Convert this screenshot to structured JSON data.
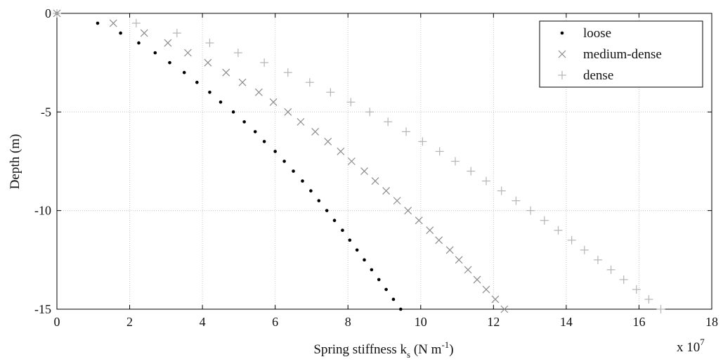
{
  "chart_data": {
    "type": "scatter",
    "title": "",
    "xlabel_main": "Spring stiffness k",
    "xlabel_sub": "s",
    "xlabel_tail": " (N m",
    "xlabel_sup": "-1",
    "xlabel_close": ")",
    "ylabel": "Depth (m)",
    "x_multiplier_base": "x 10",
    "x_multiplier_exp": "7",
    "xlim": [
      0,
      18
    ],
    "ylim": [
      -15,
      0
    ],
    "xticks": [
      "0",
      "2",
      "4",
      "6",
      "8",
      "10",
      "12",
      "14",
      "16",
      "18"
    ],
    "yticks": [
      "0",
      "-5",
      "-10",
      "-15"
    ],
    "grid": true,
    "legend_position": "top-right",
    "series": [
      {
        "name": "loose",
        "marker": "dot",
        "color": "#000000",
        "points": [
          [
            0,
            0
          ],
          [
            1.12,
            -0.5
          ],
          [
            1.75,
            -1.0
          ],
          [
            2.25,
            -1.5
          ],
          [
            2.7,
            -2.0
          ],
          [
            3.1,
            -2.5
          ],
          [
            3.5,
            -3.0
          ],
          [
            3.85,
            -3.5
          ],
          [
            4.2,
            -4.0
          ],
          [
            4.5,
            -4.5
          ],
          [
            4.85,
            -5.0
          ],
          [
            5.15,
            -5.5
          ],
          [
            5.45,
            -6.0
          ],
          [
            5.7,
            -6.5
          ],
          [
            6.0,
            -7.0
          ],
          [
            6.25,
            -7.5
          ],
          [
            6.5,
            -8.0
          ],
          [
            6.75,
            -8.5
          ],
          [
            6.98,
            -9.0
          ],
          [
            7.2,
            -9.5
          ],
          [
            7.42,
            -10.0
          ],
          [
            7.63,
            -10.5
          ],
          [
            7.85,
            -11.0
          ],
          [
            8.05,
            -11.5
          ],
          [
            8.25,
            -12.0
          ],
          [
            8.45,
            -12.5
          ],
          [
            8.65,
            -13.0
          ],
          [
            8.85,
            -13.5
          ],
          [
            9.05,
            -14.0
          ],
          [
            9.25,
            -14.5
          ],
          [
            9.45,
            -15.0
          ]
        ]
      },
      {
        "name": "medium-dense",
        "marker": "x",
        "color": "#8c8c8c",
        "points": [
          [
            0,
            0
          ],
          [
            1.55,
            -0.5
          ],
          [
            2.4,
            -1.0
          ],
          [
            3.05,
            -1.5
          ],
          [
            3.6,
            -2.0
          ],
          [
            4.15,
            -2.5
          ],
          [
            4.65,
            -3.0
          ],
          [
            5.1,
            -3.5
          ],
          [
            5.55,
            -4.0
          ],
          [
            5.95,
            -4.5
          ],
          [
            6.35,
            -5.0
          ],
          [
            6.7,
            -5.5
          ],
          [
            7.1,
            -6.0
          ],
          [
            7.45,
            -6.5
          ],
          [
            7.8,
            -7.0
          ],
          [
            8.1,
            -7.5
          ],
          [
            8.45,
            -8.0
          ],
          [
            8.75,
            -8.5
          ],
          [
            9.05,
            -9.0
          ],
          [
            9.35,
            -9.5
          ],
          [
            9.65,
            -10.0
          ],
          [
            9.95,
            -10.5
          ],
          [
            10.25,
            -11.0
          ],
          [
            10.5,
            -11.5
          ],
          [
            10.8,
            -12.0
          ],
          [
            11.05,
            -12.5
          ],
          [
            11.3,
            -13.0
          ],
          [
            11.55,
            -13.5
          ],
          [
            11.8,
            -14.0
          ],
          [
            12.05,
            -14.5
          ],
          [
            12.3,
            -15.0
          ]
        ]
      },
      {
        "name": "dense",
        "marker": "plus",
        "color": "#b4b4b4",
        "points": [
          [
            0,
            0
          ],
          [
            2.18,
            -0.5
          ],
          [
            3.3,
            -1.0
          ],
          [
            4.2,
            -1.5
          ],
          [
            4.98,
            -2.0
          ],
          [
            5.7,
            -2.5
          ],
          [
            6.35,
            -3.0
          ],
          [
            6.95,
            -3.5
          ],
          [
            7.52,
            -4.0
          ],
          [
            8.08,
            -4.5
          ],
          [
            8.6,
            -5.0
          ],
          [
            9.1,
            -5.5
          ],
          [
            9.6,
            -6.0
          ],
          [
            10.05,
            -6.5
          ],
          [
            10.52,
            -7.0
          ],
          [
            10.95,
            -7.5
          ],
          [
            11.38,
            -8.0
          ],
          [
            11.8,
            -8.5
          ],
          [
            12.22,
            -9.0
          ],
          [
            12.62,
            -9.5
          ],
          [
            13.02,
            -10.0
          ],
          [
            13.4,
            -10.5
          ],
          [
            13.78,
            -11.0
          ],
          [
            14.15,
            -11.5
          ],
          [
            14.5,
            -12.0
          ],
          [
            14.87,
            -12.5
          ],
          [
            15.23,
            -13.0
          ],
          [
            15.58,
            -13.5
          ],
          [
            15.93,
            -14.0
          ],
          [
            16.27,
            -14.5
          ],
          [
            16.6,
            -15.0
          ]
        ]
      }
    ]
  }
}
